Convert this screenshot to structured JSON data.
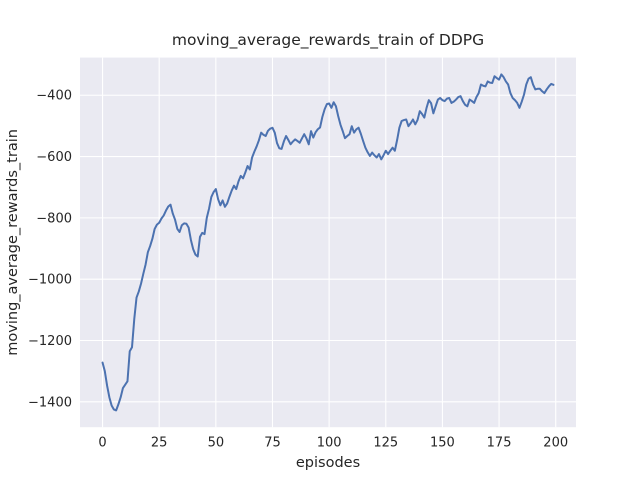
{
  "figure": {
    "background": "#ffffff"
  },
  "chart_data": {
    "type": "line",
    "title": "moving_average_rewards_train of DDPG",
    "xlabel": "episodes",
    "ylabel": "moving_average_rewards_train",
    "legend": "none",
    "grid": true,
    "x_ticks": [
      0,
      25,
      50,
      75,
      100,
      125,
      150,
      175,
      200
    ],
    "x_tick_labels": [
      "0",
      "25",
      "50",
      "75",
      "100",
      "125",
      "150",
      "175",
      "200"
    ],
    "y_ticks": [
      -400,
      -600,
      -800,
      -1000,
      -1200,
      -1400
    ],
    "y_tick_labels": [
      "−400",
      "−600",
      "−800",
      "−1000",
      "−1200",
      "−1400"
    ],
    "xlim": [
      -9.95,
      208.95
    ],
    "ylim": [
      -1482.8,
      -277.2
    ],
    "style": {
      "axes_background": "#eaeaf2",
      "grid_color": "#ffffff",
      "line_color": "#4c72b0",
      "text_color": "#262626"
    },
    "series": [
      {
        "name": "DDPG moving_average_rewards_train",
        "x_start": 0,
        "x_step": 1,
        "values": [
          -1272,
          -1300,
          -1347,
          -1385,
          -1412,
          -1425,
          -1428,
          -1408,
          -1385,
          -1355,
          -1344,
          -1333,
          -1235,
          -1222,
          -1130,
          -1060,
          -1040,
          -1014,
          -982,
          -952,
          -912,
          -892,
          -868,
          -836,
          -822,
          -816,
          -802,
          -792,
          -776,
          -763,
          -757,
          -786,
          -806,
          -836,
          -846,
          -824,
          -818,
          -819,
          -832,
          -872,
          -902,
          -920,
          -926,
          -862,
          -849,
          -853,
          -800,
          -770,
          -732,
          -716,
          -706,
          -739,
          -759,
          -743,
          -764,
          -753,
          -731,
          -711,
          -695,
          -706,
          -681,
          -663,
          -671,
          -652,
          -631,
          -642,
          -603,
          -584,
          -567,
          -547,
          -522,
          -529,
          -533,
          -516,
          -509,
          -506,
          -522,
          -556,
          -573,
          -575,
          -551,
          -533,
          -546,
          -560,
          -551,
          -544,
          -549,
          -555,
          -541,
          -527,
          -541,
          -560,
          -517,
          -538,
          -521,
          -511,
          -505,
          -471,
          -446,
          -429,
          -427,
          -441,
          -423,
          -436,
          -468,
          -496,
          -517,
          -540,
          -533,
          -527,
          -501,
          -522,
          -511,
          -506,
          -526,
          -549,
          -571,
          -586,
          -598,
          -587,
          -596,
          -603,
          -592,
          -609,
          -596,
          -581,
          -592,
          -581,
          -571,
          -581,
          -546,
          -506,
          -484,
          -481,
          -479,
          -501,
          -491,
          -479,
          -495,
          -481,
          -452,
          -461,
          -473,
          -441,
          -416,
          -426,
          -459,
          -436,
          -414,
          -409,
          -416,
          -419,
          -411,
          -409,
          -425,
          -421,
          -414,
          -406,
          -403,
          -419,
          -431,
          -436,
          -414,
          -419,
          -425,
          -406,
          -393,
          -365,
          -369,
          -371,
          -355,
          -359,
          -360,
          -338,
          -344,
          -349,
          -332,
          -341,
          -355,
          -365,
          -393,
          -409,
          -416,
          -425,
          -441,
          -421,
          -398,
          -365,
          -346,
          -341,
          -365,
          -381,
          -379,
          -379,
          -387,
          -393,
          -381,
          -371,
          -363,
          -366
        ]
      }
    ]
  }
}
